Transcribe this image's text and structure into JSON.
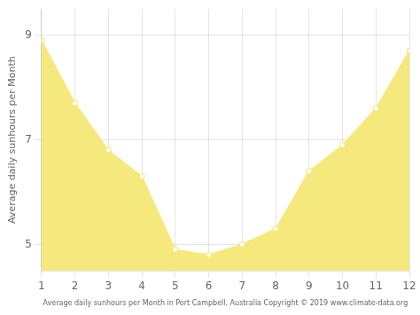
{
  "chart_data": {
    "type": "area",
    "x": [
      1,
      2,
      3,
      4,
      5,
      6,
      7,
      8,
      9,
      10,
      11,
      12
    ],
    "values": [
      8.9,
      7.7,
      6.8,
      6.3,
      4.9,
      4.8,
      5.0,
      5.3,
      6.4,
      6.9,
      7.6,
      8.7
    ],
    "color": "#f5e97e",
    "marker": "circle",
    "ylabel": "Average daily sunhours per Month",
    "xlabel": "Average daily sunhours per Month in Port Campbell, Australia Copyright © 2019 www.climate-data.org",
    "xlim": [
      1,
      12
    ],
    "xticks": [
      1,
      2,
      3,
      4,
      5,
      6,
      7,
      8,
      9,
      10,
      11,
      12
    ],
    "ylim": [
      4.5,
      9.5
    ],
    "yticks": [
      5,
      7,
      9
    ],
    "grid": true
  }
}
